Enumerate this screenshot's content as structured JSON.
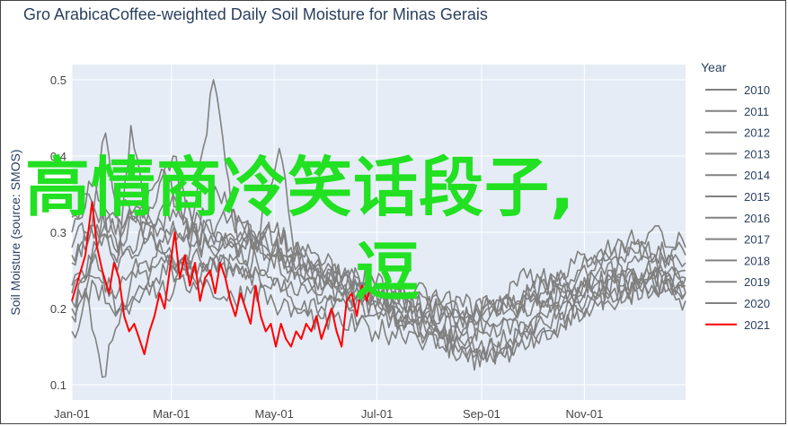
{
  "chart_data": {
    "type": "line",
    "title": "Gro ArabicaCoffee-weighted Daily Soil Moisture for Minas Gerais",
    "ylabel": "Soil Moisture (source: SMOS)",
    "xlabel": "",
    "ylim": [
      0.08,
      0.52
    ],
    "yticks": [
      0.1,
      0.2,
      0.3,
      0.4,
      0.5
    ],
    "xticks": [
      "Jan-01",
      "Mar-01",
      "May-01",
      "Jul-01",
      "Sep-01",
      "Nov-01"
    ],
    "xtick_days": [
      0,
      59,
      120,
      181,
      243,
      304
    ],
    "xlim_days": [
      0,
      364
    ],
    "legend": {
      "title": "Year",
      "placement": "right"
    },
    "colors": {
      "history": "#808080",
      "current": "#ff0000",
      "plot_bg": "#e5ecf6",
      "grid": "#ffffff"
    },
    "series": [
      {
        "name": "2010",
        "points": [
          [
            0,
            0.19
          ],
          [
            10,
            0.24
          ],
          [
            20,
            0.33
          ],
          [
            28,
            0.27
          ],
          [
            35,
            0.44
          ],
          [
            45,
            0.31
          ],
          [
            55,
            0.3
          ],
          [
            70,
            0.28
          ],
          [
            85,
            0.36
          ],
          [
            100,
            0.3
          ],
          [
            120,
            0.27
          ],
          [
            140,
            0.24
          ],
          [
            160,
            0.22
          ],
          [
            180,
            0.21
          ],
          [
            200,
            0.2
          ],
          [
            220,
            0.19
          ],
          [
            240,
            0.21
          ],
          [
            260,
            0.2
          ],
          [
            280,
            0.23
          ],
          [
            300,
            0.22
          ],
          [
            320,
            0.24
          ],
          [
            340,
            0.23
          ],
          [
            364,
            0.22
          ]
        ]
      },
      {
        "name": "2011",
        "points": [
          [
            0,
            0.3
          ],
          [
            12,
            0.36
          ],
          [
            25,
            0.28
          ],
          [
            40,
            0.33
          ],
          [
            55,
            0.38
          ],
          [
            70,
            0.3
          ],
          [
            84,
            0.5
          ],
          [
            95,
            0.32
          ],
          [
            110,
            0.29
          ],
          [
            125,
            0.27
          ],
          [
            140,
            0.25
          ],
          [
            160,
            0.24
          ],
          [
            180,
            0.22
          ],
          [
            200,
            0.21
          ],
          [
            220,
            0.2
          ],
          [
            240,
            0.18
          ],
          [
            260,
            0.2
          ],
          [
            280,
            0.21
          ],
          [
            300,
            0.22
          ],
          [
            320,
            0.25
          ],
          [
            340,
            0.23
          ],
          [
            364,
            0.24
          ]
        ]
      },
      {
        "name": "2012",
        "points": [
          [
            0,
            0.27
          ],
          [
            15,
            0.31
          ],
          [
            27,
            0.25
          ],
          [
            40,
            0.3
          ],
          [
            60,
            0.4
          ],
          [
            75,
            0.28
          ],
          [
            90,
            0.29
          ],
          [
            110,
            0.26
          ],
          [
            130,
            0.25
          ],
          [
            150,
            0.23
          ],
          [
            170,
            0.22
          ],
          [
            190,
            0.21
          ],
          [
            210,
            0.19
          ],
          [
            230,
            0.17
          ],
          [
            250,
            0.18
          ],
          [
            270,
            0.17
          ],
          [
            290,
            0.2
          ],
          [
            310,
            0.24
          ],
          [
            330,
            0.26
          ],
          [
            350,
            0.25
          ],
          [
            364,
            0.24
          ]
        ]
      },
      {
        "name": "2013",
        "points": [
          [
            0,
            0.26
          ],
          [
            10,
            0.29
          ],
          [
            20,
            0.43
          ],
          [
            30,
            0.27
          ],
          [
            45,
            0.29
          ],
          [
            65,
            0.26
          ],
          [
            80,
            0.31
          ],
          [
            100,
            0.28
          ],
          [
            120,
            0.3
          ],
          [
            135,
            0.27
          ],
          [
            150,
            0.25
          ],
          [
            170,
            0.23
          ],
          [
            190,
            0.2
          ],
          [
            210,
            0.18
          ],
          [
            230,
            0.16
          ],
          [
            250,
            0.18
          ],
          [
            270,
            0.19
          ],
          [
            290,
            0.22
          ],
          [
            310,
            0.23
          ],
          [
            330,
            0.22
          ],
          [
            350,
            0.27
          ],
          [
            364,
            0.25
          ]
        ]
      },
      {
        "name": "2014",
        "points": [
          [
            0,
            0.23
          ],
          [
            12,
            0.26
          ],
          [
            24,
            0.22
          ],
          [
            36,
            0.25
          ],
          [
            50,
            0.24
          ],
          [
            68,
            0.27
          ],
          [
            88,
            0.26
          ],
          [
            105,
            0.25
          ],
          [
            120,
            0.24
          ],
          [
            140,
            0.22
          ],
          [
            160,
            0.21
          ],
          [
            180,
            0.2
          ],
          [
            200,
            0.18
          ],
          [
            220,
            0.16
          ],
          [
            235,
            0.13
          ],
          [
            250,
            0.15
          ],
          [
            270,
            0.16
          ],
          [
            290,
            0.18
          ],
          [
            310,
            0.21
          ],
          [
            330,
            0.22
          ],
          [
            350,
            0.24
          ],
          [
            364,
            0.22
          ]
        ]
      },
      {
        "name": "2015",
        "points": [
          [
            0,
            0.17
          ],
          [
            10,
            0.21
          ],
          [
            18,
            0.11
          ],
          [
            28,
            0.18
          ],
          [
            40,
            0.23
          ],
          [
            55,
            0.26
          ],
          [
            70,
            0.24
          ],
          [
            88,
            0.27
          ],
          [
            105,
            0.25
          ],
          [
            120,
            0.23
          ],
          [
            138,
            0.21
          ],
          [
            155,
            0.2
          ],
          [
            175,
            0.19
          ],
          [
            195,
            0.19
          ],
          [
            215,
            0.17
          ],
          [
            235,
            0.16
          ],
          [
            255,
            0.14
          ],
          [
            275,
            0.19
          ],
          [
            295,
            0.21
          ],
          [
            315,
            0.23
          ],
          [
            335,
            0.24
          ],
          [
            364,
            0.23
          ]
        ]
      },
      {
        "name": "2016",
        "points": [
          [
            0,
            0.22
          ],
          [
            15,
            0.28
          ],
          [
            30,
            0.34
          ],
          [
            45,
            0.29
          ],
          [
            60,
            0.33
          ],
          [
            75,
            0.29
          ],
          [
            95,
            0.28
          ],
          [
            115,
            0.3
          ],
          [
            130,
            0.28
          ],
          [
            150,
            0.26
          ],
          [
            170,
            0.24
          ],
          [
            190,
            0.22
          ],
          [
            210,
            0.2
          ],
          [
            230,
            0.19
          ],
          [
            250,
            0.2
          ],
          [
            270,
            0.24
          ],
          [
            290,
            0.23
          ],
          [
            310,
            0.25
          ],
          [
            330,
            0.28
          ],
          [
            350,
            0.27
          ],
          [
            364,
            0.26
          ]
        ]
      },
      {
        "name": "2017",
        "points": [
          [
            0,
            0.2
          ],
          [
            14,
            0.23
          ],
          [
            26,
            0.19
          ],
          [
            42,
            0.26
          ],
          [
            58,
            0.28
          ],
          [
            72,
            0.24
          ],
          [
            90,
            0.26
          ],
          [
            105,
            0.24
          ],
          [
            123,
            0.41
          ],
          [
            132,
            0.27
          ],
          [
            150,
            0.23
          ],
          [
            170,
            0.21
          ],
          [
            190,
            0.19
          ],
          [
            210,
            0.17
          ],
          [
            230,
            0.15
          ],
          [
            250,
            0.13
          ],
          [
            265,
            0.15
          ],
          [
            285,
            0.17
          ],
          [
            305,
            0.2
          ],
          [
            325,
            0.23
          ],
          [
            345,
            0.25
          ],
          [
            364,
            0.21
          ]
        ]
      },
      {
        "name": "2018",
        "points": [
          [
            0,
            0.28
          ],
          [
            12,
            0.31
          ],
          [
            25,
            0.27
          ],
          [
            38,
            0.32
          ],
          [
            52,
            0.29
          ],
          [
            68,
            0.31
          ],
          [
            85,
            0.28
          ],
          [
            102,
            0.3
          ],
          [
            118,
            0.27
          ],
          [
            134,
            0.25
          ],
          [
            150,
            0.24
          ],
          [
            170,
            0.22
          ],
          [
            190,
            0.21
          ],
          [
            210,
            0.2
          ],
          [
            230,
            0.19
          ],
          [
            250,
            0.2
          ],
          [
            270,
            0.22
          ],
          [
            290,
            0.25
          ],
          [
            310,
            0.27
          ],
          [
            330,
            0.29
          ],
          [
            350,
            0.3
          ],
          [
            364,
            0.28
          ]
        ]
      },
      {
        "name": "2019",
        "points": [
          [
            0,
            0.21
          ],
          [
            14,
            0.24
          ],
          [
            28,
            0.2
          ],
          [
            44,
            0.23
          ],
          [
            60,
            0.22
          ],
          [
            76,
            0.24
          ],
          [
            92,
            0.21
          ],
          [
            108,
            0.23
          ],
          [
            124,
            0.2
          ],
          [
            140,
            0.19
          ],
          [
            160,
            0.18
          ],
          [
            180,
            0.17
          ],
          [
            200,
            0.17
          ],
          [
            220,
            0.15
          ],
          [
            240,
            0.14
          ],
          [
            260,
            0.16
          ],
          [
            280,
            0.18
          ],
          [
            300,
            0.2
          ],
          [
            320,
            0.22
          ],
          [
            340,
            0.23
          ],
          [
            364,
            0.22
          ]
        ]
      },
      {
        "name": "2020",
        "points": [
          [
            0,
            0.32
          ],
          [
            10,
            0.35
          ],
          [
            22,
            0.3
          ],
          [
            34,
            0.33
          ],
          [
            48,
            0.31
          ],
          [
            62,
            0.34
          ],
          [
            78,
            0.3
          ],
          [
            94,
            0.32
          ],
          [
            110,
            0.29
          ],
          [
            126,
            0.27
          ],
          [
            142,
            0.25
          ],
          [
            160,
            0.24
          ],
          [
            180,
            0.23
          ],
          [
            200,
            0.22
          ],
          [
            220,
            0.21
          ],
          [
            240,
            0.2
          ],
          [
            260,
            0.21
          ],
          [
            280,
            0.22
          ],
          [
            300,
            0.25
          ],
          [
            320,
            0.27
          ],
          [
            340,
            0.28
          ],
          [
            364,
            0.27
          ]
        ]
      },
      {
        "name": "2021",
        "points": [
          [
            0,
            0.21
          ],
          [
            4,
            0.24
          ],
          [
            8,
            0.27
          ],
          [
            12,
            0.34
          ],
          [
            15,
            0.28
          ],
          [
            18,
            0.25
          ],
          [
            22,
            0.22
          ],
          [
            25,
            0.26
          ],
          [
            28,
            0.24
          ],
          [
            31,
            0.19
          ],
          [
            34,
            0.17
          ],
          [
            37,
            0.18
          ],
          [
            40,
            0.16
          ],
          [
            43,
            0.14
          ],
          [
            46,
            0.17
          ],
          [
            49,
            0.19
          ],
          [
            52,
            0.22
          ],
          [
            55,
            0.2
          ],
          [
            58,
            0.25
          ],
          [
            61,
            0.3
          ],
          [
            64,
            0.24
          ],
          [
            67,
            0.27
          ],
          [
            70,
            0.23
          ],
          [
            73,
            0.26
          ],
          [
            76,
            0.21
          ],
          [
            79,
            0.24
          ],
          [
            82,
            0.25
          ],
          [
            85,
            0.22
          ],
          [
            88,
            0.26
          ],
          [
            91,
            0.24
          ],
          [
            94,
            0.21
          ],
          [
            97,
            0.19
          ],
          [
            100,
            0.22
          ],
          [
            103,
            0.2
          ],
          [
            106,
            0.18
          ],
          [
            109,
            0.23
          ],
          [
            112,
            0.19
          ],
          [
            115,
            0.17
          ],
          [
            118,
            0.18
          ],
          [
            121,
            0.15
          ],
          [
            124,
            0.18
          ],
          [
            127,
            0.16
          ],
          [
            130,
            0.15
          ],
          [
            133,
            0.17
          ],
          [
            136,
            0.16
          ],
          [
            139,
            0.18
          ],
          [
            142,
            0.17
          ],
          [
            145,
            0.19
          ],
          [
            148,
            0.16
          ],
          [
            151,
            0.18
          ],
          [
            154,
            0.2
          ],
          [
            157,
            0.17
          ],
          [
            160,
            0.15
          ],
          [
            163,
            0.21
          ],
          [
            166,
            0.22
          ],
          [
            169,
            0.19
          ],
          [
            172,
            0.23
          ],
          [
            175,
            0.21
          ],
          [
            177,
            0.23
          ]
        ]
      }
    ]
  },
  "overlay": {
    "line1": "高情商冷笑话段子,",
    "line2": "逗"
  }
}
